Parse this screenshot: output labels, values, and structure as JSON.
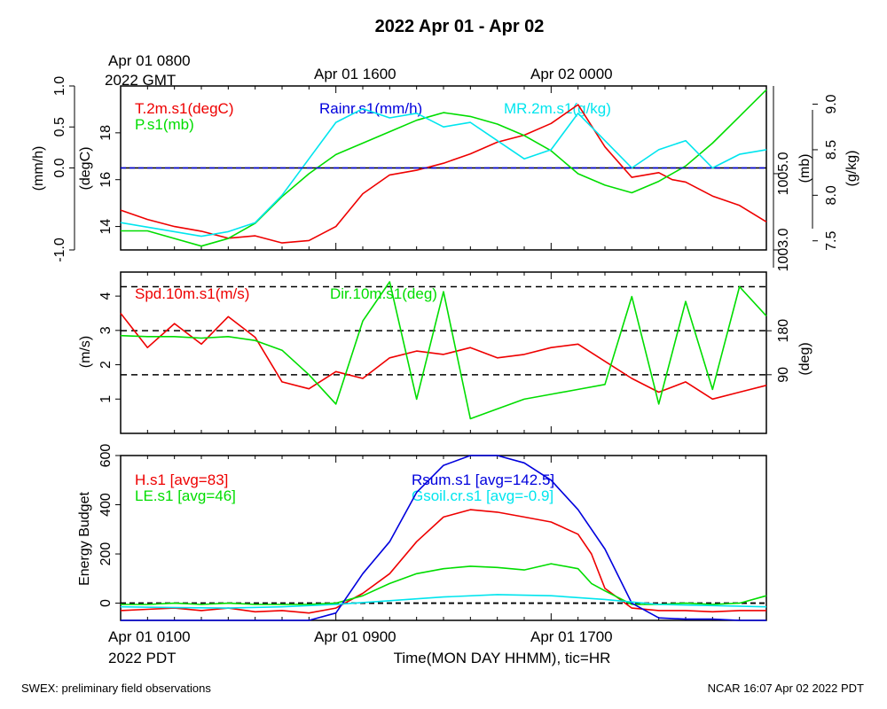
{
  "title": "2022 Apr 01 - Apr 02",
  "top_labels": {
    "start_line1": "Apr 01 0800",
    "start_line2": "2022 GMT",
    "mid": "Apr 01 1600",
    "end": "Apr 02 0000"
  },
  "bottom_labels": {
    "start_line1": "Apr 01 0100",
    "start_line2": "2022 PDT",
    "mid": "Apr 01 0900",
    "end": "Apr 01 1700",
    "xlabel": "Time(MON DAY HHMM), tic=HR"
  },
  "footer": {
    "left": "SWEX: preliminary field observations",
    "right": "NCAR 16:07 Apr 02 2022 PDT"
  },
  "colors": {
    "red": "#ee0000",
    "green": "#00dd00",
    "blue": "#0000dd",
    "cyan": "#00e5ee",
    "black": "#000000"
  },
  "chart_data": [
    {
      "type": "line",
      "panel": "top",
      "x_unit": "hours since Apr 01 0100 PDT",
      "x_range": [
        0,
        24
      ],
      "axes": {
        "rain": {
          "label": "(mm/h)",
          "range": [
            -1,
            1
          ],
          "ticks": [
            "-1.0",
            "0.0",
            "0.5",
            "1.0"
          ]
        },
        "temp": {
          "label": "(degC)",
          "range": [
            13,
            20
          ],
          "ticks": [
            "14",
            "16",
            "18"
          ]
        },
        "pres": {
          "label": "(mb)",
          "range": [
            1003.0,
            1007.3
          ],
          "ticks": [
            "1003.0",
            "1005.0"
          ]
        },
        "mr": {
          "label": "(g/kg)",
          "range": [
            7.4,
            9.2
          ],
          "ticks": [
            "7.5",
            "8.0",
            "8.5",
            "9.0"
          ]
        }
      },
      "series": [
        {
          "name": "T.2m.s1(degC)",
          "color": "#ee0000",
          "axis": "temp",
          "x": [
            0,
            1,
            2,
            3,
            4,
            5,
            6,
            7,
            8,
            9,
            10,
            11,
            12,
            13,
            14,
            15,
            16,
            17,
            18,
            19,
            20,
            20.5,
            21,
            22,
            23,
            24
          ],
          "values": [
            14.7,
            14.3,
            14.0,
            13.8,
            13.5,
            13.6,
            13.3,
            13.4,
            14.0,
            15.4,
            16.2,
            16.4,
            16.7,
            17.1,
            17.6,
            17.9,
            18.4,
            19.2,
            17.4,
            16.1,
            16.3,
            16.0,
            15.9,
            15.3,
            14.9,
            14.2
          ]
        },
        {
          "name": "P.s1(mb)",
          "color": "#00dd00",
          "axis": "pres",
          "x": [
            0,
            1,
            2,
            3,
            4,
            5,
            6,
            7,
            8,
            9,
            10,
            11,
            12,
            13,
            14,
            15,
            16,
            17,
            18,
            19,
            20,
            21,
            22,
            23,
            24
          ],
          "values": [
            1003.5,
            1003.5,
            1003.3,
            1003.1,
            1003.3,
            1003.7,
            1004.4,
            1005.0,
            1005.5,
            1005.8,
            1006.1,
            1006.4,
            1006.6,
            1006.5,
            1006.3,
            1006.0,
            1005.6,
            1005.0,
            1004.7,
            1004.5,
            1004.8,
            1005.2,
            1005.8,
            1006.5,
            1007.2
          ]
        },
        {
          "name": "MR.2m.s1(g/kg)",
          "color": "#00e5ee",
          "axis": "mr",
          "x": [
            0,
            1,
            2,
            3,
            4,
            5,
            6,
            7,
            8,
            9,
            10,
            11,
            12,
            13,
            14,
            15,
            16,
            17,
            18,
            19,
            20,
            21,
            22,
            23,
            24
          ],
          "values": [
            7.7,
            7.65,
            7.6,
            7.55,
            7.6,
            7.7,
            8.0,
            8.4,
            8.8,
            8.95,
            8.85,
            8.9,
            8.75,
            8.8,
            8.6,
            8.4,
            8.5,
            8.9,
            8.6,
            8.3,
            8.5,
            8.6,
            8.3,
            8.45,
            8.5
          ]
        },
        {
          "name": "Rainr.s1(mm/h)",
          "color": "#0000dd",
          "axis": "rain",
          "x": [
            0,
            24
          ],
          "values": [
            0,
            0
          ]
        }
      ]
    },
    {
      "type": "line",
      "panel": "middle",
      "x_unit": "hours since Apr 01 0100 PDT",
      "x_range": [
        0,
        24
      ],
      "axes": {
        "speed": {
          "label": "(m/s)",
          "range": [
            0,
            4.7
          ],
          "ticks": [
            "1",
            "2",
            "3",
            "4"
          ]
        },
        "dir": {
          "label": "(deg)",
          "range": [
            -30,
            300
          ],
          "ticks": [
            "90",
            "180"
          ]
        }
      },
      "reference_lines_deg": [
        90,
        180,
        270
      ],
      "series": [
        {
          "name": "Spd.10m.s1(m/s)",
          "color": "#ee0000",
          "axis": "speed",
          "x": [
            0,
            1,
            2,
            3,
            4,
            5,
            6,
            7,
            8,
            9,
            10,
            11,
            12,
            13,
            14,
            15,
            16,
            17,
            18,
            19,
            20,
            21,
            22,
            23,
            24
          ],
          "values": [
            3.5,
            2.5,
            3.2,
            2.6,
            3.4,
            2.8,
            1.5,
            1.3,
            1.8,
            1.6,
            2.2,
            2.4,
            2.3,
            2.5,
            2.2,
            2.3,
            2.5,
            2.6,
            2.1,
            1.6,
            1.2,
            1.5,
            1.0,
            1.2,
            1.4
          ]
        },
        {
          "name": "Dir.10m.s1(deg)",
          "color": "#00dd00",
          "axis": "dir",
          "x": [
            0,
            1,
            2,
            3,
            4,
            5,
            6,
            7,
            8,
            9,
            10,
            11,
            12,
            13,
            14,
            15,
            16,
            17,
            18,
            19,
            20,
            21,
            22,
            23,
            24
          ],
          "values": [
            170,
            168,
            168,
            165,
            168,
            160,
            140,
            90,
            30,
            200,
            280,
            40,
            260,
            0,
            20,
            40,
            50,
            60,
            70,
            250,
            30,
            240,
            60,
            270,
            210
          ]
        }
      ]
    },
    {
      "type": "line",
      "panel": "bottom",
      "x_unit": "hours since Apr 01 0100 PDT",
      "x_range": [
        0,
        24
      ],
      "ylabel": "Energy Budget",
      "ylim": [
        -70,
        600
      ],
      "yticks": [
        "0",
        "200",
        "400",
        "600"
      ],
      "series": [
        {
          "name": "H.s1 [avg=83]",
          "color": "#ee0000",
          "x": [
            0,
            1,
            2,
            3,
            4,
            5,
            6,
            7,
            8,
            9,
            10,
            11,
            12,
            13,
            14,
            15,
            16,
            17,
            17.5,
            18,
            19,
            20,
            21,
            22,
            23,
            24
          ],
          "values": [
            -30,
            -25,
            -20,
            -30,
            -20,
            -35,
            -30,
            -40,
            -20,
            40,
            120,
            250,
            350,
            380,
            370,
            350,
            330,
            280,
            200,
            60,
            -20,
            -30,
            -30,
            -35,
            -30,
            -30
          ]
        },
        {
          "name": "LE.s1 [avg=46]",
          "color": "#00dd00",
          "x": [
            0,
            1,
            2,
            3,
            4,
            5,
            6,
            7,
            8,
            9,
            10,
            11,
            12,
            13,
            14,
            15,
            16,
            17,
            17.5,
            18,
            19,
            20,
            21,
            22,
            23,
            24
          ],
          "values": [
            -5,
            -5,
            0,
            -5,
            0,
            -5,
            -5,
            -5,
            0,
            30,
            80,
            120,
            140,
            150,
            145,
            135,
            160,
            140,
            80,
            50,
            -5,
            -5,
            0,
            -5,
            0,
            30
          ]
        },
        {
          "name": "Rsum.s1 [avg=142.5]",
          "color": "#0000dd",
          "x": [
            0,
            2,
            4,
            6,
            7,
            8,
            9,
            10,
            11,
            12,
            13,
            14,
            15,
            16,
            17,
            18,
            19,
            20,
            21,
            22,
            23,
            24
          ],
          "values": [
            -75,
            -75,
            -75,
            -75,
            -70,
            -40,
            120,
            250,
            450,
            560,
            600,
            600,
            570,
            500,
            380,
            220,
            0,
            -60,
            -65,
            -65,
            -70,
            -75
          ]
        },
        {
          "name": "Gsoil.cr.s1 [avg=-0.9]",
          "color": "#00e5ee",
          "x": [
            0,
            2,
            4,
            6,
            8,
            10,
            12,
            14,
            16,
            18,
            20,
            22,
            24
          ],
          "values": [
            -15,
            -18,
            -20,
            -15,
            -5,
            10,
            25,
            35,
            30,
            15,
            -5,
            -10,
            -15
          ]
        }
      ]
    }
  ]
}
